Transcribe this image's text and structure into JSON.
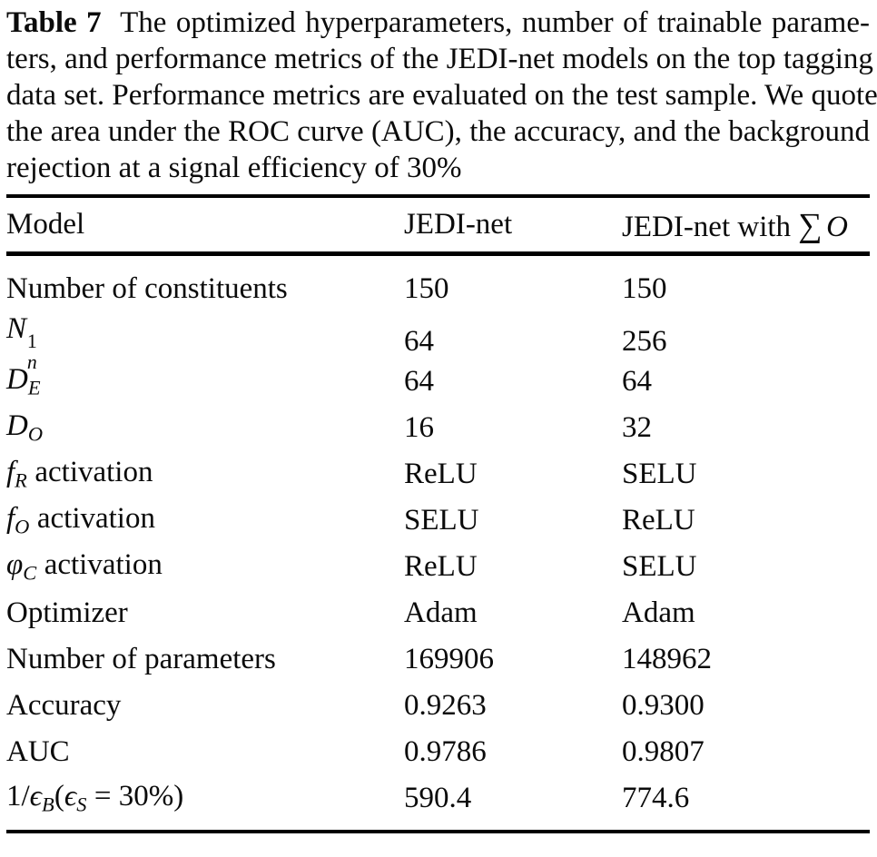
{
  "caption": {
    "label": "Table 7",
    "lines": [
      "The optimized hyperparameters, number of trainable parame-",
      "ters, and performance metrics of the JEDI-net models on the top tagging",
      "data set. Performance metrics are evaluated on the test sample. We quote",
      "the area under the ROC curve (AUC), the accuracy, and the background",
      "rejection at a signal efficiency of 30%"
    ]
  },
  "table": {
    "header": {
      "columns": [
        {
          "name": "model",
          "segments": [
            {
              "t": "text",
              "v": "Model"
            }
          ]
        },
        {
          "name": "jedi-net",
          "segments": [
            {
              "t": "text",
              "v": "JEDI-net"
            }
          ]
        },
        {
          "name": "jedi-net-with-sum-o",
          "segments": [
            {
              "t": "text",
              "v": "JEDI-net with "
            },
            {
              "t": "sum",
              "v": "∑"
            },
            {
              "t": "i",
              "v": "O"
            }
          ]
        }
      ]
    },
    "rows": [
      {
        "label": [
          {
            "t": "text",
            "v": "Number of constituents"
          }
        ],
        "values": [
          "150",
          "150"
        ]
      },
      {
        "label": [
          {
            "t": "i",
            "v": "N"
          },
          {
            "t": "supsub",
            "sup": "1",
            "sub": "n"
          }
        ],
        "values": [
          "64",
          "256"
        ]
      },
      {
        "label": [
          {
            "t": "i",
            "v": "D"
          },
          {
            "t": "sub",
            "v": "E"
          }
        ],
        "values": [
          "64",
          "64"
        ]
      },
      {
        "label": [
          {
            "t": "i",
            "v": "D"
          },
          {
            "t": "sub",
            "v": "O"
          }
        ],
        "values": [
          "16",
          "32"
        ]
      },
      {
        "label": [
          {
            "t": "i",
            "v": "f"
          },
          {
            "t": "sub",
            "v": "R"
          },
          {
            "t": "text",
            "v": " activation"
          }
        ],
        "values": [
          "ReLU",
          "SELU"
        ]
      },
      {
        "label": [
          {
            "t": "i",
            "v": "f"
          },
          {
            "t": "sub",
            "v": "O"
          },
          {
            "t": "text",
            "v": " activation"
          }
        ],
        "values": [
          "SELU",
          "ReLU"
        ]
      },
      {
        "label": [
          {
            "t": "i",
            "v": "φ"
          },
          {
            "t": "sub",
            "v": "C"
          },
          {
            "t": "text",
            "v": " activation"
          }
        ],
        "values": [
          "ReLU",
          "SELU"
        ]
      },
      {
        "label": [
          {
            "t": "text",
            "v": "Optimizer"
          }
        ],
        "values": [
          "Adam",
          "Adam"
        ]
      },
      {
        "label": [
          {
            "t": "text",
            "v": "Number of parameters"
          }
        ],
        "values": [
          "169906",
          "148962"
        ]
      },
      {
        "label": [
          {
            "t": "text",
            "v": "Accuracy"
          }
        ],
        "values": [
          "0.9263",
          "0.9300"
        ]
      },
      {
        "label": [
          {
            "t": "text",
            "v": "AUC"
          }
        ],
        "values": [
          "0.9786",
          "0.9807"
        ]
      },
      {
        "label": [
          {
            "t": "text",
            "v": "1/"
          },
          {
            "t": "i",
            "v": "ϵ"
          },
          {
            "t": "sub",
            "v": "B"
          },
          {
            "t": "text",
            "v": "("
          },
          {
            "t": "i",
            "v": "ϵ"
          },
          {
            "t": "sub",
            "v": "S"
          },
          {
            "t": "text",
            "v": " = 30%)"
          }
        ],
        "values": [
          "590.4",
          "774.6"
        ]
      }
    ]
  },
  "colors": {
    "background": "#ffffff",
    "text": "#0b0b0b",
    "rule": "#000000"
  }
}
